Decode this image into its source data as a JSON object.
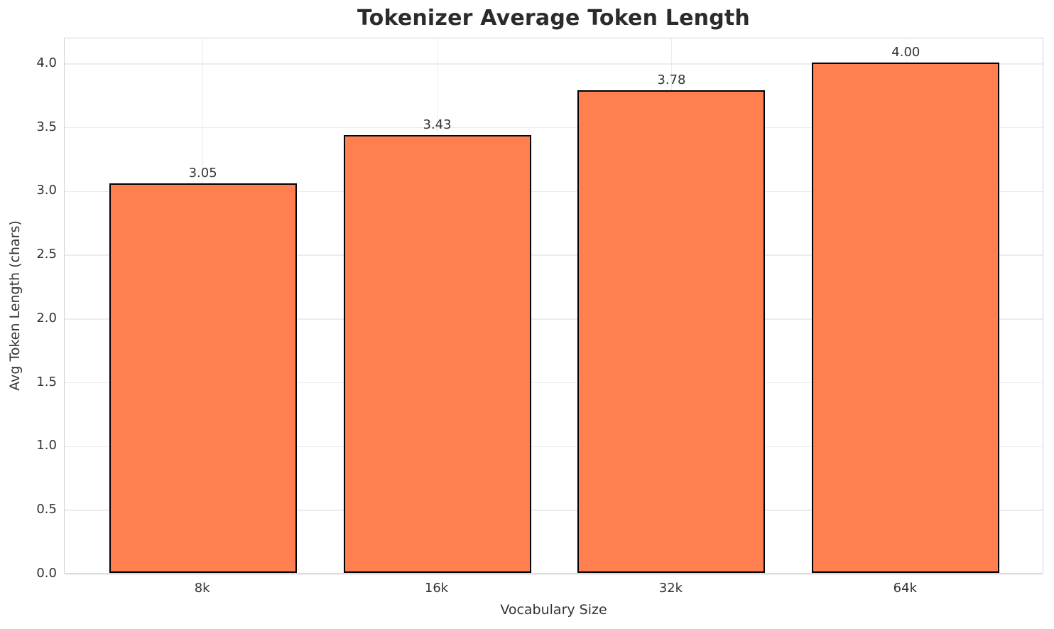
{
  "chart_data": {
    "type": "bar",
    "title": "Tokenizer Average Token Length",
    "xlabel": "Vocabulary Size",
    "ylabel": "Avg Token Length (chars)",
    "categories": [
      "8k",
      "16k",
      "32k",
      "64k"
    ],
    "values": [
      3.05,
      3.43,
      3.78,
      4.0
    ],
    "value_labels": [
      "3.05",
      "3.43",
      "3.78",
      "4.00"
    ],
    "yticks": [
      0.0,
      0.5,
      1.0,
      1.5,
      2.0,
      2.5,
      3.0,
      3.5,
      4.0
    ],
    "ytick_labels": [
      "0.0",
      "0.5",
      "1.0",
      "1.5",
      "2.0",
      "2.5",
      "3.0",
      "3.5",
      "4.0"
    ],
    "ylim": [
      0,
      4.2
    ],
    "grid": true,
    "legend": "none",
    "bar_width_fraction": 0.8,
    "colors": {
      "bar_fill": "#FF7F50",
      "bar_edge": "#000000",
      "grid": "#ececec",
      "spine": "#d2d2d2",
      "tick_text": "#333333",
      "title_text": "#2b2b2b",
      "background": "#ffffff"
    }
  }
}
